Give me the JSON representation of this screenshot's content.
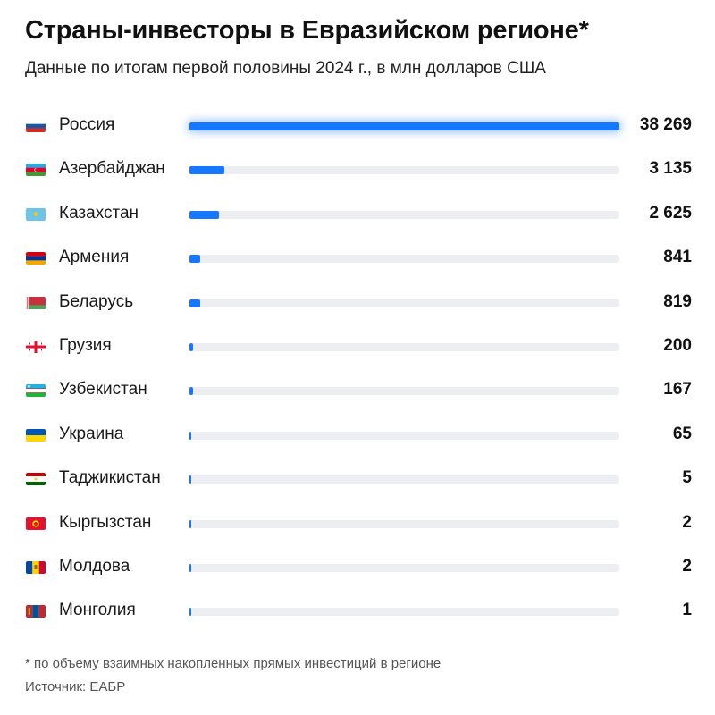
{
  "header": {
    "title": "Страны-инвесторы в Евразийском регионе*",
    "subtitle": "Данные по итогам первой половины 2024 г., в млн долларов США"
  },
  "chart_data": {
    "type": "bar",
    "orientation": "horizontal",
    "title": "Страны-инвесторы в Евразийском регионе*",
    "subtitle": "Данные по итогам первой половины 2024 г., в млн долларов США",
    "xlim": [
      0,
      38269
    ],
    "categories": [
      "Россия",
      "Азербайджан",
      "Казахстан",
      "Армения",
      "Беларусь",
      "Грузия",
      "Узбекистан",
      "Украина",
      "Таджикистан",
      "Кыргызстан",
      "Молдова",
      "Монголия"
    ],
    "values": [
      38269,
      3135,
      2625,
      841,
      819,
      200,
      167,
      65,
      5,
      2,
      2,
      1
    ],
    "value_labels": [
      "38 269",
      "3 135",
      "2 625",
      "841",
      "819",
      "200",
      "167",
      "65",
      "5",
      "2",
      "2",
      "1"
    ],
    "flags": [
      "russia-flag",
      "azerbaijan-flag",
      "kazakhstan-flag",
      "armenia-flag",
      "belarus-flag",
      "georgia-flag",
      "uzbekistan-flag",
      "ukraine-flag",
      "tajikistan-flag",
      "kyrgyzstan-flag",
      "moldova-flag",
      "mongolia-flag"
    ],
    "bar_color": "#1677ff",
    "track_color": "#eceef1",
    "grid": false
  },
  "footer": {
    "footnote": "* по объему взаимных накопленных прямых инвестиций в регионе",
    "source": "Источник: ЕАБР"
  }
}
